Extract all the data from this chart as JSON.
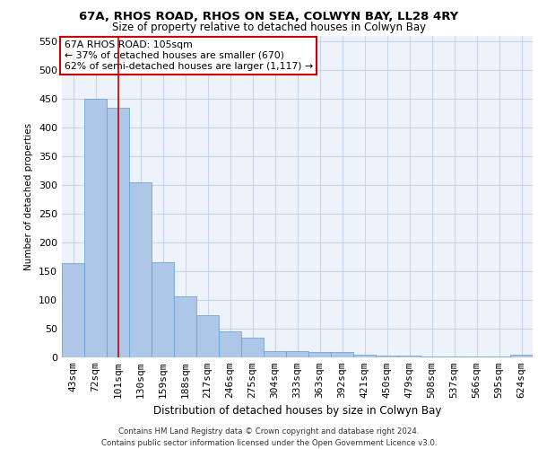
{
  "title1": "67A, RHOS ROAD, RHOS ON SEA, COLWYN BAY, LL28 4RY",
  "title2": "Size of property relative to detached houses in Colwyn Bay",
  "xlabel": "Distribution of detached houses by size in Colwyn Bay",
  "ylabel": "Number of detached properties",
  "categories": [
    "43sqm",
    "72sqm",
    "101sqm",
    "130sqm",
    "159sqm",
    "188sqm",
    "217sqm",
    "246sqm",
    "275sqm",
    "304sqm",
    "333sqm",
    "363sqm",
    "392sqm",
    "421sqm",
    "450sqm",
    "479sqm",
    "508sqm",
    "537sqm",
    "566sqm",
    "595sqm",
    "624sqm"
  ],
  "values": [
    163,
    450,
    435,
    305,
    165,
    105,
    73,
    44,
    33,
    10,
    10,
    8,
    8,
    4,
    2,
    2,
    1,
    1,
    1,
    1,
    4
  ],
  "bar_color": "#aec6e8",
  "bar_edge_color": "#5a9fd4",
  "vline_x_index": 2,
  "vline_color": "#cc0000",
  "annotation_text": "67A RHOS ROAD: 105sqm\n← 37% of detached houses are smaller (670)\n62% of semi-detached houses are larger (1,117) →",
  "annotation_box_color": "#ffffff",
  "annotation_box_edge": "#cc0000",
  "ylim": [
    0,
    560
  ],
  "yticks": [
    0,
    50,
    100,
    150,
    200,
    250,
    300,
    350,
    400,
    450,
    500,
    550
  ],
  "footer": "Contains HM Land Registry data © Crown copyright and database right 2024.\nContains public sector information licensed under the Open Government Licence v3.0.",
  "bg_color": "#eef2fb",
  "grid_color": "#c8d4e8"
}
